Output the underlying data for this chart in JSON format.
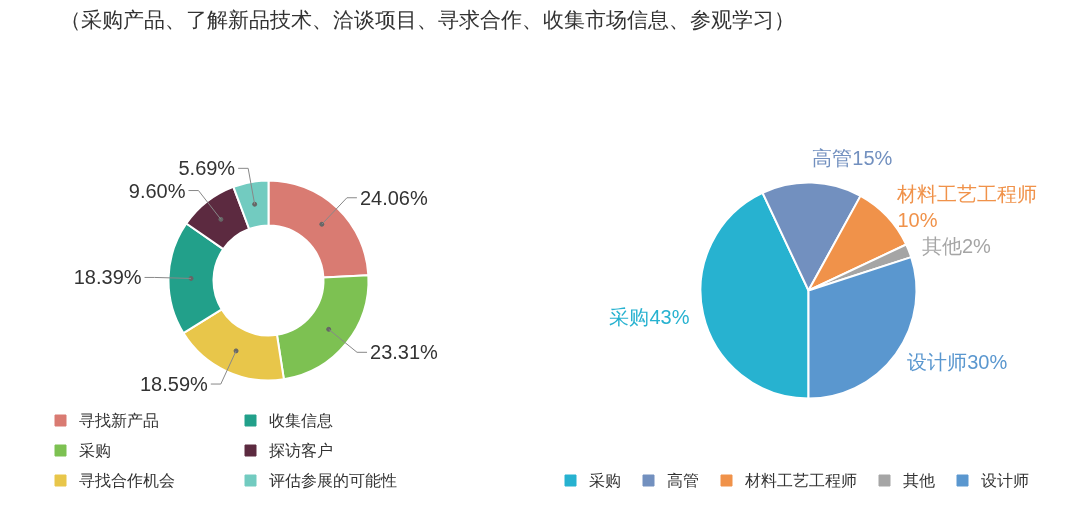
{
  "chart_data": [
    {
      "type": "donut",
      "title": "（采购产品、了解新品技术、洽谈项目、寻求合作、收集市场信息、参观学习）",
      "categories": [
        "寻找新产品",
        "采购",
        "寻找合作机会",
        "收集信息",
        "探访客户",
        "评估参展的可能性"
      ],
      "values": [
        24.06,
        23.31,
        18.59,
        18.39,
        9.6,
        5.69
      ],
      "colors": [
        "#d97b72",
        "#7dc152",
        "#e8c64a",
        "#22a08a",
        "#5c2a40",
        "#72cbc0"
      ],
      "value_labels": [
        "24.06%",
        "23.31%",
        "18.59%",
        "18.39%",
        "9.60%",
        "5.69%"
      ],
      "legend": "bottom"
    },
    {
      "type": "pie",
      "categories": [
        "采购",
        "高管",
        "材料工艺工程师",
        "其他",
        "设计师"
      ],
      "values": [
        43,
        15,
        10,
        2,
        30
      ],
      "colors": [
        "#27b2d0",
        "#7290bf",
        "#f0924a",
        "#a5a5a5",
        "#5a97cf"
      ],
      "value_labels": [
        "采购43%",
        "高管15%",
        "材料工艺工程师\n10%",
        "其他2%",
        "设计师30%"
      ],
      "legend": "bottom"
    }
  ]
}
